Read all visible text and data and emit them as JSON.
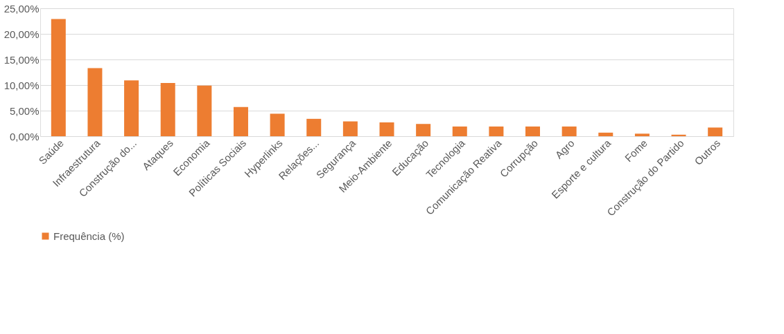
{
  "chart_data": {
    "type": "bar",
    "categories": [
      "Saúde",
      "Infraestrutura",
      "Construção do...",
      "Ataques",
      "Economia",
      "Políticas Sociais",
      "Hyperlinks",
      "Relações...",
      "Segurança",
      "Meio-Ambiente",
      "Educação",
      "Tecnologia",
      "Comunicação Reativa",
      "Corrupção",
      "Agro",
      "Esporte e cultura",
      "Fome",
      "Construção do Partido",
      "Outros"
    ],
    "series": [
      {
        "name": "Frequência (%)",
        "color": "#ed7d31",
        "values": [
          22.9,
          13.3,
          10.9,
          10.4,
          9.9,
          5.7,
          4.4,
          3.4,
          2.9,
          2.7,
          2.4,
          1.9,
          1.9,
          1.9,
          1.9,
          0.7,
          0.5,
          0.3,
          1.7
        ]
      }
    ],
    "ylim": [
      0,
      25
    ],
    "yticks": [
      {
        "value": 0,
        "label": "0,00%"
      },
      {
        "value": 5,
        "label": "5,00%"
      },
      {
        "value": 10,
        "label": "10,00%"
      },
      {
        "value": 15,
        "label": "15,00%"
      },
      {
        "value": 20,
        "label": "20,00%"
      },
      {
        "value": 25,
        "label": "25,00%"
      }
    ],
    "grid": "y",
    "legend": "bottom"
  }
}
